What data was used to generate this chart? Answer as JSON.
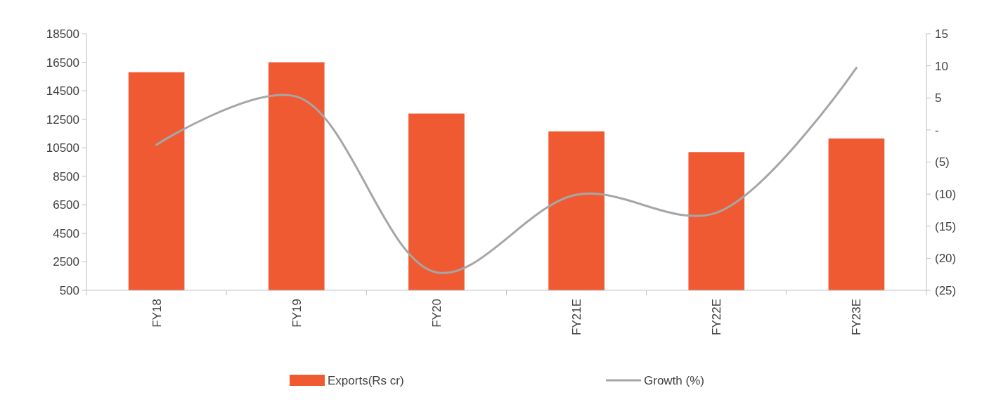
{
  "chart_data": {
    "type": "bar",
    "categories": [
      "FY18",
      "FY19",
      "FY20",
      "FY21E",
      "FY22E",
      "FY23E"
    ],
    "series": [
      {
        "name": "Exports(Rs cr)",
        "color": "#f05a32",
        "values": [
          15800,
          16500,
          12900,
          11650,
          10200,
          11150
        ]
      },
      {
        "name": "Growth (%)",
        "type": "line",
        "axis": "y2",
        "color": "#a6a6a6",
        "values": [
          -2.3,
          5.2,
          -22.2,
          -10.1,
          -12.9,
          9.7
        ]
      }
    ],
    "ylim": [
      500,
      18500
    ],
    "yticks": [
      500,
      2500,
      4500,
      6500,
      8500,
      10500,
      12500,
      14500,
      16500,
      18500
    ],
    "y2lim": [
      -25,
      15
    ],
    "y2ticks": [
      {
        "value": -25,
        "label": "(25)"
      },
      {
        "value": -20,
        "label": "(20)"
      },
      {
        "value": -15,
        "label": "(15)"
      },
      {
        "value": -10,
        "label": "(10)"
      },
      {
        "value": -5,
        "label": "(5)"
      },
      {
        "value": 0,
        "label": "-"
      },
      5,
      10,
      15
    ],
    "legend": "bottom",
    "grid": false,
    "marker": "none"
  }
}
